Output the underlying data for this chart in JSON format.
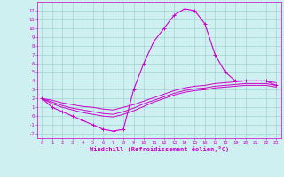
{
  "xlabel": "Windchill (Refroidissement éolien,°C)",
  "x_values": [
    0,
    1,
    2,
    3,
    4,
    5,
    6,
    7,
    8,
    9,
    10,
    11,
    12,
    13,
    14,
    15,
    16,
    17,
    18,
    19,
    20,
    21,
    22,
    23
  ],
  "line1": [
    2,
    1,
    0.5,
    0.0,
    -0.5,
    -1.0,
    -1.5,
    -1.7,
    -1.5,
    3.0,
    6.0,
    8.5,
    10.0,
    11.5,
    12.2,
    12.0,
    10.5,
    7.0,
    5.0,
    4.0,
    4.0,
    4.0,
    4.0,
    3.5
  ],
  "line2": [
    2.0,
    1.8,
    1.5,
    1.3,
    1.1,
    1.0,
    0.8,
    0.7,
    1.0,
    1.3,
    1.7,
    2.1,
    2.5,
    2.9,
    3.2,
    3.4,
    3.5,
    3.7,
    3.8,
    3.9,
    4.0,
    4.0,
    4.0,
    3.8
  ],
  "line3": [
    2.0,
    1.6,
    1.2,
    0.9,
    0.7,
    0.5,
    0.3,
    0.2,
    0.5,
    0.9,
    1.4,
    1.8,
    2.2,
    2.6,
    2.9,
    3.1,
    3.2,
    3.4,
    3.5,
    3.6,
    3.7,
    3.7,
    3.7,
    3.5
  ],
  "line4": [
    2.0,
    1.4,
    1.0,
    0.7,
    0.4,
    0.2,
    0.0,
    -0.1,
    0.2,
    0.6,
    1.1,
    1.6,
    2.0,
    2.4,
    2.7,
    2.9,
    3.0,
    3.2,
    3.3,
    3.4,
    3.5,
    3.5,
    3.5,
    3.3
  ],
  "ylim": [
    -2.5,
    13.0
  ],
  "xlim": [
    -0.5,
    23.5
  ],
  "bg_color": "#cff0f0",
  "line_color": "#cc00cc",
  "grid_color": "#99cccc",
  "yticks": [
    -2,
    -1,
    0,
    1,
    2,
    3,
    4,
    5,
    6,
    7,
    8,
    9,
    10,
    11,
    12
  ],
  "xticks": [
    0,
    1,
    2,
    3,
    4,
    5,
    6,
    7,
    8,
    9,
    10,
    11,
    12,
    13,
    14,
    15,
    16,
    17,
    18,
    19,
    20,
    21,
    22,
    23
  ],
  "tick_fontsize": 4.0,
  "xlabel_fontsize": 5.0,
  "figsize": [
    3.2,
    2.0
  ],
  "dpi": 100
}
